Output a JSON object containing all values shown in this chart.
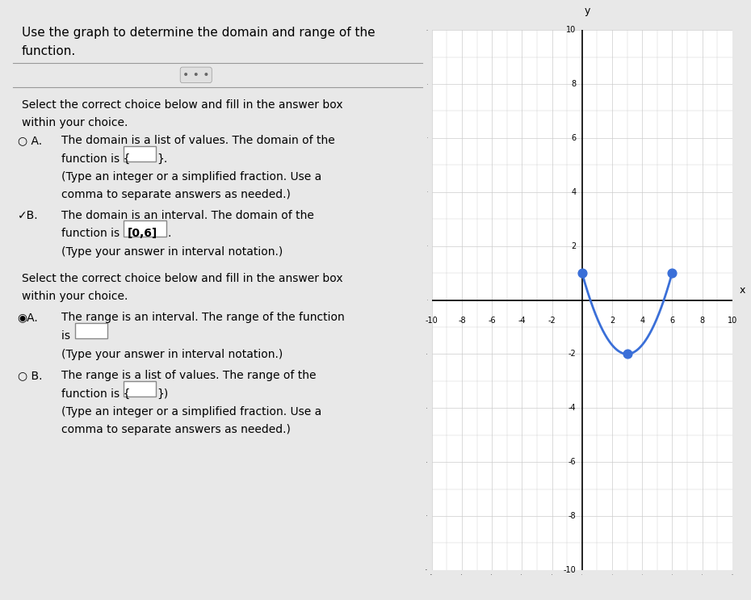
{
  "graph": {
    "xlim": [
      -10,
      10
    ],
    "ylim": [
      -10,
      10
    ],
    "x_start": 0,
    "x_end": 6,
    "x_min_point": 3,
    "y_min_point": -2,
    "y_endpoints": 1,
    "curve_color": "#3a6fd8",
    "dot_color": "#3a6fd8",
    "dot_size": 60,
    "grid_color": "#cccccc",
    "axis_color": "#000000",
    "background_color": "#ffffff"
  },
  "left_panel": {
    "background_color": "#f0f0f0",
    "text_color": "#000000"
  }
}
